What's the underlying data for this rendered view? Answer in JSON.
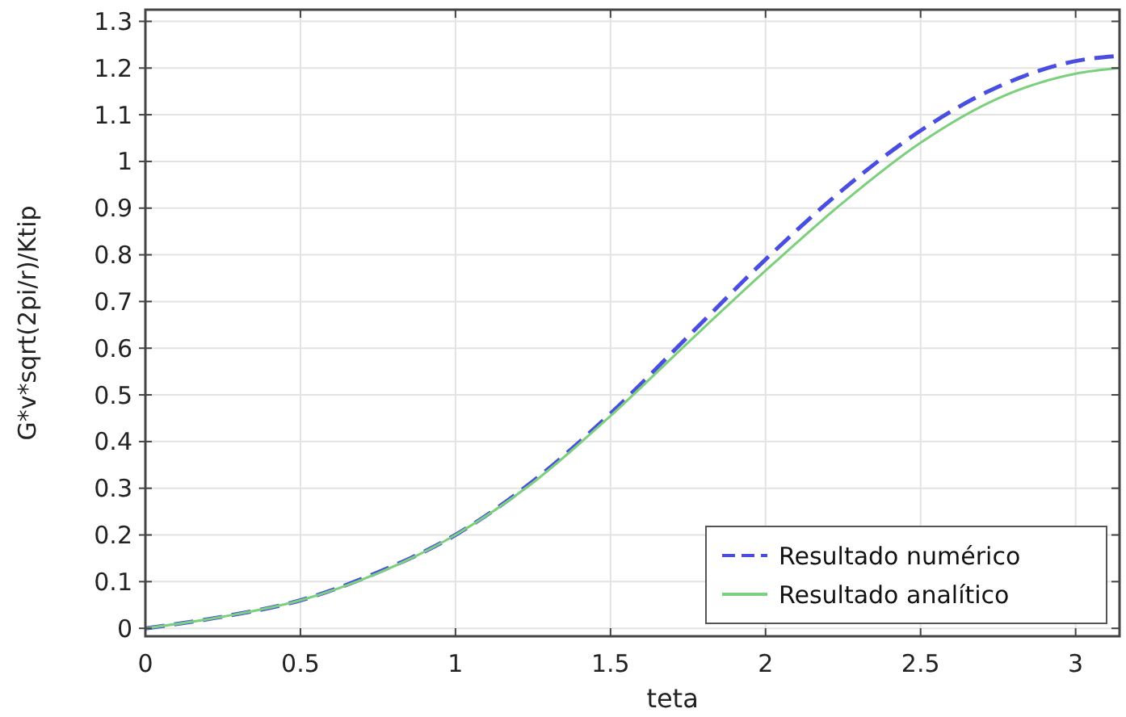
{
  "chart_data": {
    "type": "line",
    "xlabel": "teta",
    "ylabel": "G*v*sqrt(2pi/r)/Ktip",
    "x": [
      0,
      0.25,
      0.5,
      0.75,
      1,
      1.25,
      1.5,
      1.75,
      2,
      2.25,
      2.5,
      2.75,
      3,
      3.1416
    ],
    "series": [
      {
        "name": "Resultado numérico",
        "color": "#4a4ee0",
        "line_style": "dashed",
        "values": [
          0,
          0.025,
          0.06,
          0.12,
          0.2,
          0.315,
          0.46,
          0.625,
          0.79,
          0.94,
          1.066,
          1.16,
          1.215,
          1.226
        ]
      },
      {
        "name": "Resultado analítico",
        "color": "#7ccf7c",
        "line_style": "solid",
        "values": [
          0,
          0.025,
          0.06,
          0.118,
          0.2,
          0.312,
          0.455,
          0.612,
          0.766,
          0.912,
          1.04,
          1.135,
          1.188,
          1.2
        ]
      }
    ],
    "xlim": [
      0,
      3.1416
    ],
    "ylim": [
      -0.017,
      1.325
    ],
    "xticks": [
      0,
      0.5,
      1,
      1.5,
      2,
      2.5,
      3
    ],
    "yticks": [
      0,
      0.1,
      0.2,
      0.3,
      0.4,
      0.5,
      0.6,
      0.7,
      0.8,
      0.9,
      1,
      1.1,
      1.2,
      1.3
    ],
    "grid": true,
    "legend": "bottom right",
    "marker": "none"
  }
}
